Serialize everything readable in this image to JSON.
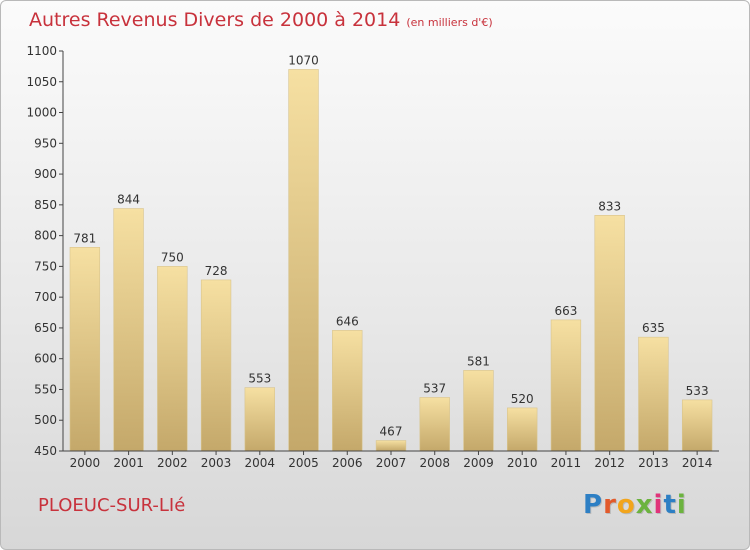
{
  "header": {
    "title": "Autres Revenus Divers de 2000 à 2014",
    "unit": "(en milliers d'€)"
  },
  "footer": {
    "place": "PLOEUC-SUR-LIé",
    "logo_letters": [
      "P",
      "r",
      "o",
      "x",
      "i",
      "t",
      "i"
    ],
    "logo_colors": [
      "#2d7fc4",
      "#e25a2b",
      "#f2a51c",
      "#6cb33f",
      "#e0337a",
      "#2d7fc4",
      "#6cb33f"
    ]
  },
  "chart_data": {
    "type": "bar",
    "title": "Autres Revenus Divers de 2000 à 2014",
    "ylabel": "",
    "xlabel": "",
    "categories": [
      "2000",
      "2001",
      "2002",
      "2003",
      "2004",
      "2005",
      "2006",
      "2007",
      "2008",
      "2009",
      "2010",
      "2011",
      "2012",
      "2013",
      "2014"
    ],
    "values": [
      781,
      844,
      750,
      728,
      553,
      1070,
      646,
      467,
      537,
      581,
      520,
      663,
      833,
      635,
      533
    ],
    "ylim": [
      450,
      1100
    ],
    "yticks": [
      450,
      500,
      550,
      600,
      650,
      700,
      750,
      800,
      850,
      900,
      950,
      1000,
      1050,
      1100
    ],
    "grid": false,
    "colors": {
      "bar_top": "#f6e0a2",
      "bar_bottom": "#c4a86a",
      "axis": "#444444",
      "label": "#333333",
      "title": "#c8323c"
    }
  }
}
